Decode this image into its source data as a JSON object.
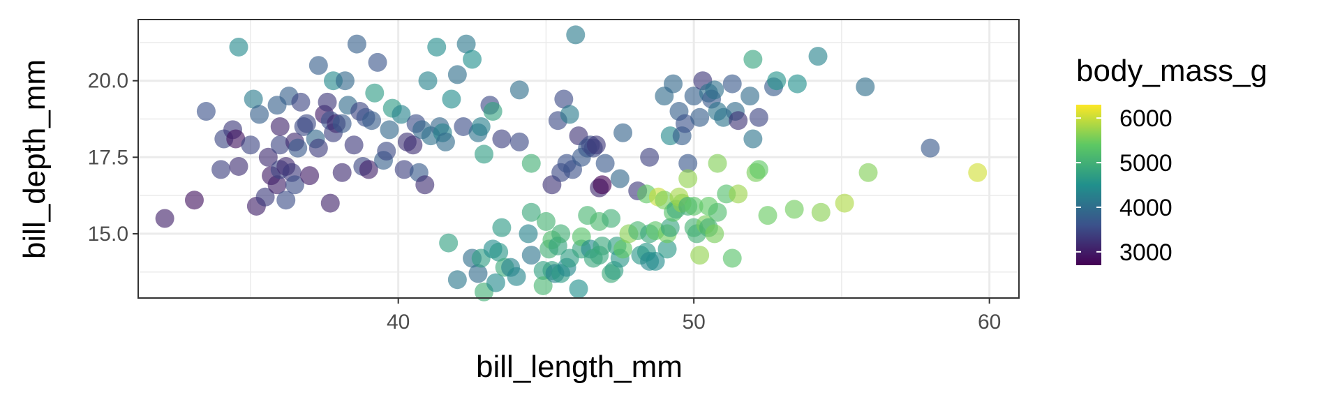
{
  "chart_data": {
    "type": "scatter",
    "title": "",
    "xlabel": "bill_length_mm",
    "ylabel": "bill_depth_mm",
    "xlim": [
      31.2,
      61.0
    ],
    "ylim": [
      12.9,
      22.0
    ],
    "x_ticks": [
      40,
      50,
      60
    ],
    "x_tick_labels": [
      "40",
      "50",
      "60"
    ],
    "y_ticks": [
      15.0,
      17.5,
      20.0
    ],
    "y_tick_labels": [
      "15.0",
      "17.5",
      "20.0"
    ],
    "grid": true,
    "color_by": "body_mass_g",
    "colorbar": {
      "title": "body_mass_g",
      "range": [
        2700,
        6300
      ],
      "ticks": [
        3000,
        4000,
        5000,
        6000
      ],
      "tick_labels": [
        "3000",
        "4000",
        "5000",
        "6000"
      ],
      "palette": "viridis",
      "colors": [
        "#440154",
        "#3b528b",
        "#21908c",
        "#5dc863",
        "#fde725"
      ]
    },
    "legend_position": "right",
    "points": [
      [
        32.1,
        15.5,
        3050
      ],
      [
        33.1,
        16.1,
        2900
      ],
      [
        33.5,
        19.0,
        3600
      ],
      [
        34.0,
        17.1,
        3400
      ],
      [
        34.1,
        18.1,
        3475
      ],
      [
        34.4,
        18.4,
        3325
      ],
      [
        34.5,
        18.1,
        2900
      ],
      [
        34.6,
        21.1,
        4400
      ],
      [
        34.6,
        17.2,
        3200
      ],
      [
        35.0,
        17.9,
        3450
      ],
      [
        35.1,
        19.4,
        4200
      ],
      [
        35.2,
        15.9,
        3050
      ],
      [
        35.3,
        18.9,
        3800
      ],
      [
        35.5,
        16.2,
        3350
      ],
      [
        35.6,
        17.5,
        3175
      ],
      [
        35.7,
        16.9,
        3000
      ],
      [
        35.9,
        16.6,
        3050
      ],
      [
        35.9,
        19.2,
        3800
      ],
      [
        36.0,
        17.9,
        3450
      ],
      [
        36.0,
        17.1,
        3450
      ],
      [
        36.0,
        18.5,
        3100
      ],
      [
        36.2,
        16.1,
        3550
      ],
      [
        36.2,
        17.2,
        3150
      ],
      [
        36.3,
        19.5,
        3800
      ],
      [
        36.4,
        17.0,
        3325
      ],
      [
        36.5,
        16.6,
        3550
      ],
      [
        36.5,
        18.0,
        3150
      ],
      [
        36.6,
        17.8,
        3700
      ],
      [
        36.7,
        19.3,
        3450
      ],
      [
        36.8,
        18.5,
        3500
      ],
      [
        36.9,
        18.6,
        3500
      ],
      [
        37.0,
        16.9,
        3000
      ],
      [
        37.2,
        18.1,
        3900
      ],
      [
        37.3,
        20.5,
        3775
      ],
      [
        37.3,
        17.8,
        3350
      ],
      [
        37.5,
        18.9,
        2975
      ],
      [
        37.6,
        19.3,
        3300
      ],
      [
        37.7,
        16.0,
        3075
      ],
      [
        37.7,
        18.7,
        3600
      ],
      [
        37.8,
        18.3,
        3400
      ],
      [
        37.8,
        20.0,
        4400
      ],
      [
        37.9,
        18.6,
        3150
      ],
      [
        38.1,
        18.6,
        3700
      ],
      [
        38.1,
        17.0,
        3175
      ],
      [
        38.2,
        20.0,
        3900
      ],
      [
        38.3,
        19.2,
        3950
      ],
      [
        38.5,
        17.9,
        3325
      ],
      [
        38.6,
        21.2,
        3800
      ],
      [
        38.7,
        19.0,
        3450
      ],
      [
        38.8,
        17.2,
        3475
      ],
      [
        38.9,
        18.8,
        3600
      ],
      [
        39.0,
        17.1,
        3050
      ],
      [
        39.1,
        18.7,
        3750
      ],
      [
        39.2,
        19.6,
        4675
      ],
      [
        39.3,
        20.6,
        3650
      ],
      [
        39.5,
        17.4,
        3800
      ],
      [
        39.6,
        17.7,
        3500
      ],
      [
        39.7,
        18.4,
        3900
      ],
      [
        39.8,
        19.1,
        4650
      ],
      [
        40.1,
        18.9,
        4300
      ],
      [
        40.2,
        17.1,
        3400
      ],
      [
        40.3,
        18.0,
        3250
      ],
      [
        40.5,
        17.9,
        3200
      ],
      [
        40.6,
        18.6,
        3550
      ],
      [
        40.7,
        17.0,
        3725
      ],
      [
        40.8,
        18.4,
        3900
      ],
      [
        40.9,
        16.6,
        3200
      ],
      [
        41.0,
        20.0,
        4300
      ],
      [
        41.1,
        18.2,
        4050
      ],
      [
        41.3,
        21.1,
        4450
      ],
      [
        41.4,
        18.5,
        3875
      ],
      [
        41.5,
        18.3,
        4300
      ],
      [
        41.6,
        18.0,
        3950
      ],
      [
        41.8,
        19.4,
        4450
      ],
      [
        42.0,
        20.2,
        4000
      ],
      [
        42.2,
        18.5,
        3550
      ],
      [
        42.3,
        21.2,
        4150
      ],
      [
        42.5,
        20.7,
        4500
      ],
      [
        42.7,
        18.3,
        4075
      ],
      [
        42.8,
        18.5,
        4250
      ],
      [
        42.9,
        17.6,
        4700
      ],
      [
        43.1,
        19.2,
        3500
      ],
      [
        43.2,
        19.0,
        4775
      ],
      [
        43.5,
        18.1,
        3400
      ],
      [
        44.1,
        18.0,
        3500
      ],
      [
        44.1,
        19.7,
        4000
      ],
      [
        44.5,
        17.3,
        5000
      ],
      [
        45.2,
        16.6,
        3250
      ],
      [
        45.4,
        18.7,
        3525
      ],
      [
        45.5,
        17.0,
        3500
      ],
      [
        45.6,
        19.4,
        3525
      ],
      [
        45.7,
        17.3,
        3600
      ],
      [
        45.8,
        18.9,
        4200
      ],
      [
        45.9,
        17.1,
        3575
      ],
      [
        46.0,
        21.5,
        4200
      ],
      [
        46.1,
        18.2,
        3250
      ],
      [
        46.2,
        17.5,
        3700
      ],
      [
        46.4,
        17.8,
        3700
      ],
      [
        46.5,
        17.9,
        3500
      ],
      [
        46.6,
        17.8,
        3500
      ],
      [
        46.7,
        17.9,
        3300
      ],
      [
        46.8,
        16.5,
        3150
      ],
      [
        46.9,
        16.6,
        2700
      ],
      [
        47.0,
        17.3,
        3700
      ],
      [
        47.5,
        16.8,
        3900
      ],
      [
        47.6,
        18.3,
        3850
      ],
      [
        48.1,
        16.4,
        3325
      ],
      [
        48.5,
        17.5,
        3400
      ],
      [
        49.0,
        19.5,
        3950
      ],
      [
        49.2,
        18.2,
        4400
      ],
      [
        49.3,
        19.9,
        3900
      ],
      [
        49.5,
        19.0,
        3800
      ],
      [
        49.6,
        18.2,
        3775
      ],
      [
        49.7,
        18.6,
        3600
      ],
      [
        49.8,
        17.3,
        3675
      ],
      [
        50.0,
        19.5,
        3800
      ],
      [
        50.2,
        18.8,
        3775
      ],
      [
        50.3,
        20.0,
        3300
      ],
      [
        50.5,
        19.6,
        4050
      ],
      [
        50.6,
        19.4,
        3700
      ],
      [
        50.7,
        19.7,
        4050
      ],
      [
        50.8,
        19.0,
        4100
      ],
      [
        51.0,
        18.8,
        4100
      ],
      [
        51.3,
        19.9,
        3700
      ],
      [
        51.4,
        19.0,
        3950
      ],
      [
        51.5,
        18.7,
        3250
      ],
      [
        51.9,
        19.5,
        3950
      ],
      [
        52.0,
        20.7,
        4800
      ],
      [
        52.0,
        18.1,
        4100
      ],
      [
        52.2,
        18.8,
        3450
      ],
      [
        52.7,
        19.8,
        3725
      ],
      [
        52.8,
        20.0,
        4550
      ],
      [
        53.5,
        19.9,
        4500
      ],
      [
        54.2,
        20.8,
        4300
      ],
      [
        55.8,
        19.8,
        4000
      ],
      [
        58.0,
        17.8,
        3700
      ],
      [
        41.7,
        14.7,
        4750
      ],
      [
        42.0,
        13.5,
        4150
      ],
      [
        42.5,
        14.2,
        4000
      ],
      [
        42.7,
        13.7,
        3950
      ],
      [
        42.8,
        14.2,
        4700
      ],
      [
        42.9,
        13.1,
        5000
      ],
      [
        43.2,
        14.5,
        4450
      ],
      [
        43.3,
        13.4,
        4400
      ],
      [
        43.4,
        14.4,
        4600
      ],
      [
        43.5,
        15.2,
        4650
      ],
      [
        43.6,
        13.9,
        4900
      ],
      [
        43.8,
        13.9,
        4300
      ],
      [
        44.0,
        13.6,
        4350
      ],
      [
        44.4,
        15.0,
        4300
      ],
      [
        44.5,
        14.3,
        4100
      ],
      [
        44.5,
        15.7,
        4875
      ],
      [
        44.9,
        13.8,
        4750
      ],
      [
        44.9,
        13.3,
        5100
      ],
      [
        45.0,
        15.4,
        5050
      ],
      [
        45.1,
        14.5,
        5000
      ],
      [
        45.2,
        13.8,
        4750
      ],
      [
        45.2,
        14.8,
        5200
      ],
      [
        45.3,
        13.7,
        4300
      ],
      [
        45.4,
        14.6,
        4800
      ],
      [
        45.5,
        13.7,
        4650
      ],
      [
        45.5,
        15.0,
        5000
      ],
      [
        45.7,
        13.9,
        4400
      ],
      [
        45.8,
        14.2,
        4700
      ],
      [
        46.1,
        13.2,
        4500
      ],
      [
        46.2,
        14.5,
        4800
      ],
      [
        46.2,
        14.9,
        5300
      ],
      [
        46.4,
        15.6,
        5100
      ],
      [
        46.5,
        14.5,
        4400
      ],
      [
        46.6,
        14.2,
        4850
      ],
      [
        46.8,
        14.3,
        4850
      ],
      [
        46.8,
        15.4,
        5150
      ],
      [
        46.9,
        14.6,
        4875
      ],
      [
        47.2,
        13.7,
        4925
      ],
      [
        47.2,
        15.5,
        4975
      ],
      [
        47.3,
        13.8,
        4725
      ],
      [
        47.4,
        14.6,
        4725
      ],
      [
        47.5,
        14.2,
        4600
      ],
      [
        47.6,
        14.5,
        5400
      ],
      [
        47.8,
        15.0,
        5650
      ],
      [
        48.1,
        15.1,
        5100
      ],
      [
        48.2,
        14.3,
        4600
      ],
      [
        48.4,
        14.4,
        4625
      ],
      [
        48.4,
        16.3,
        5400
      ],
      [
        48.5,
        14.1,
        4375
      ],
      [
        48.5,
        15.0,
        4850
      ],
      [
        48.7,
        14.1,
        4450
      ],
      [
        48.7,
        15.1,
        5350
      ],
      [
        48.8,
        16.2,
        6000
      ],
      [
        49.0,
        16.1,
        5550
      ],
      [
        49.1,
        14.5,
        4625
      ],
      [
        49.1,
        15.0,
        5500
      ],
      [
        49.2,
        15.2,
        4800
      ],
      [
        49.3,
        15.7,
        5300
      ],
      [
        49.4,
        15.8,
        4925
      ],
      [
        49.5,
        16.2,
        5800
      ],
      [
        49.6,
        16.0,
        5700
      ],
      [
        49.8,
        15.9,
        5000
      ],
      [
        49.8,
        16.8,
        5700
      ],
      [
        50.0,
        15.2,
        5050
      ],
      [
        50.0,
        15.9,
        5350
      ],
      [
        50.1,
        15.0,
        5000
      ],
      [
        50.2,
        14.3,
        5700
      ],
      [
        50.4,
        15.3,
        5550
      ],
      [
        50.5,
        15.2,
        5000
      ],
      [
        50.5,
        15.9,
        5400
      ],
      [
        50.7,
        15.0,
        5550
      ],
      [
        50.8,
        15.7,
        5200
      ],
      [
        50.8,
        17.3,
        5600
      ],
      [
        51.1,
        16.3,
        5250
      ],
      [
        51.3,
        14.2,
        5300
      ],
      [
        51.5,
        16.3,
        5750
      ],
      [
        52.1,
        17.0,
        5550
      ],
      [
        52.2,
        17.1,
        5400
      ],
      [
        52.5,
        15.6,
        5450
      ],
      [
        53.4,
        15.8,
        5500
      ],
      [
        54.3,
        15.7,
        5650
      ],
      [
        55.1,
        16.0,
        5850
      ],
      [
        55.9,
        17.0,
        5600
      ],
      [
        59.6,
        17.0,
        6050
      ]
    ]
  }
}
